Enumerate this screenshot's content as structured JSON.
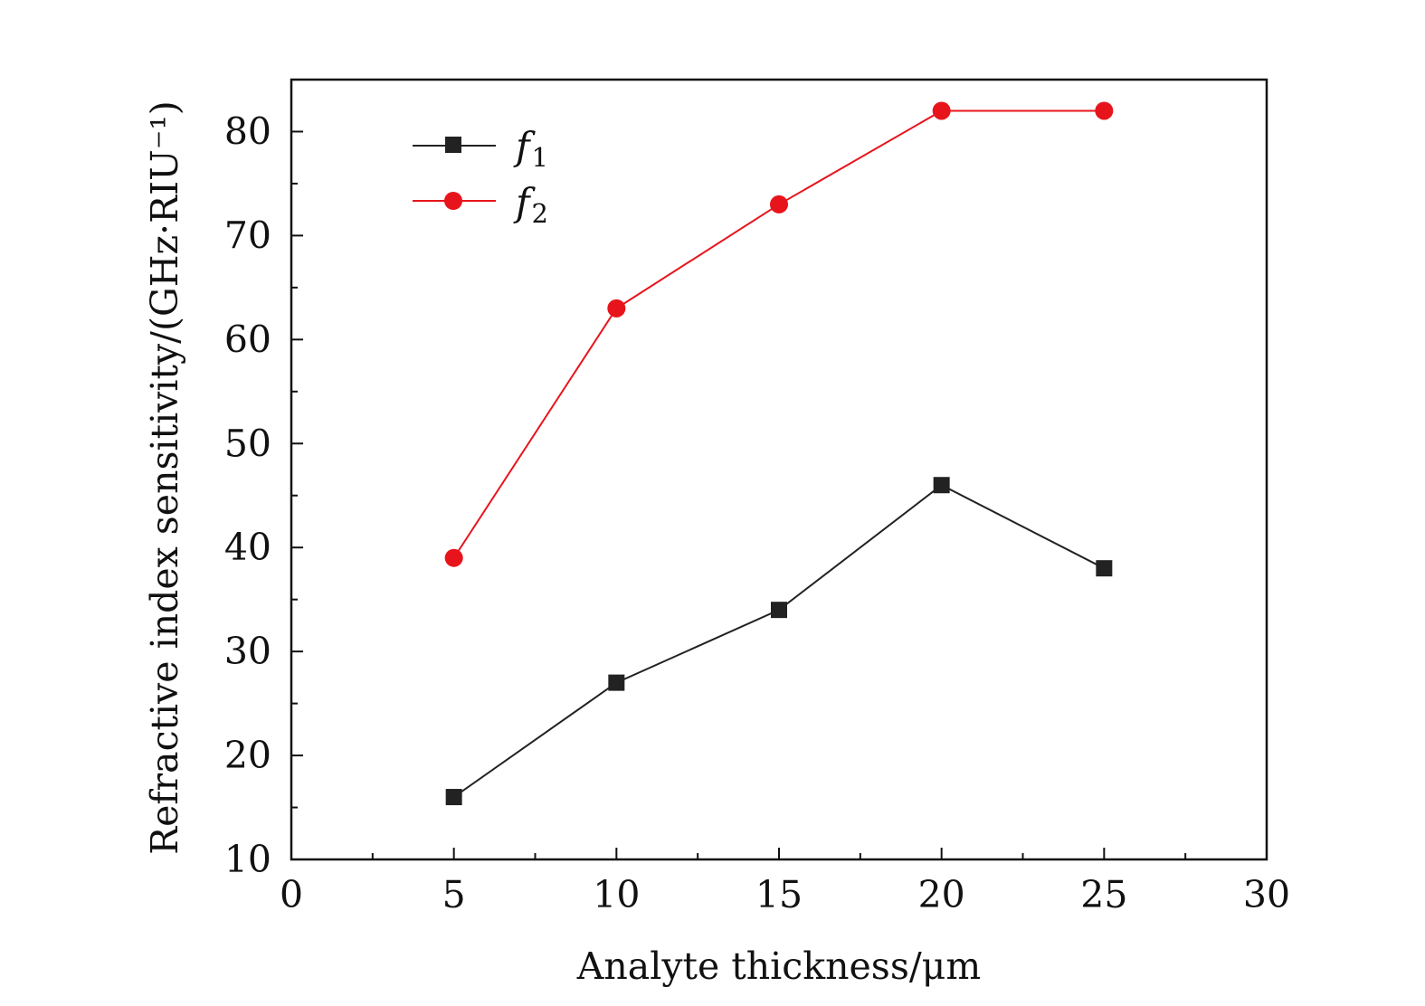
{
  "chart_data": {
    "type": "line",
    "xlabel": "Analyte thickness/μm",
    "ylabel": "Refractive index sensitivity/(GHz·RIU⁻¹)",
    "xlim": [
      0,
      30
    ],
    "ylim": [
      10,
      85
    ],
    "xticks": [
      "0",
      "5",
      "10",
      "15",
      "20",
      "25",
      "30"
    ],
    "yticks": [
      "10",
      "20",
      "30",
      "40",
      "50",
      "60",
      "70",
      "80"
    ],
    "grid": false,
    "legend_position": "top-left",
    "series": [
      {
        "name": "f1",
        "label_main": "f",
        "label_sub": "1",
        "color": "#222222",
        "marker": "square",
        "x": [
          5,
          10,
          15,
          20,
          25
        ],
        "y": [
          16,
          27,
          34,
          46,
          38
        ]
      },
      {
        "name": "f2",
        "label_main": "f",
        "label_sub": "2",
        "color": "#e8141c",
        "marker": "circle",
        "x": [
          5,
          10,
          15,
          20,
          25
        ],
        "y": [
          39,
          63,
          73,
          82,
          82
        ]
      }
    ]
  }
}
